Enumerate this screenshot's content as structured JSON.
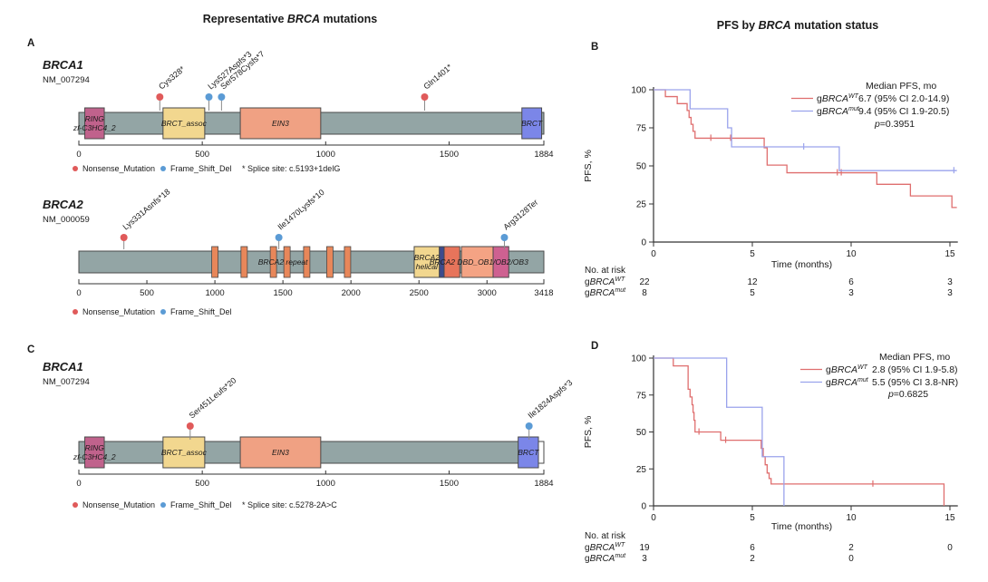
{
  "titles": {
    "left": [
      "Representative ",
      "BRCA",
      " mutations"
    ],
    "right": [
      "PFS by ",
      "BRCA",
      " mutation status"
    ]
  },
  "panels": {
    "a": "A",
    "b": "B",
    "c": "C",
    "d": "D"
  },
  "colors": {
    "nonsense": "#e05a5a",
    "frameshift": "#5b9bd5",
    "km_wt": "#df6e6e",
    "km_mut": "#9aa3ec",
    "protein_bar": "#93a5a5",
    "domain_ring": "#c0628c",
    "domain_brct_assoc": "#f2d78f",
    "domain_ein3": "#f0a183",
    "domain_brct": "#7b86e8",
    "repeat_orange": "#e8875a",
    "helical_yellow": "#f2d78f",
    "navy_strip": "#3c4b8e",
    "dbd_red": "#e7745b",
    "dbd_salmon": "#f4a384",
    "dbd_pink": "#ce6191"
  },
  "chart_data": [
    {
      "id": "brca1_a",
      "type": "lollipop",
      "gene": "BRCA1",
      "transcript": "NM_007294",
      "length": 1884,
      "axis_ticks": [
        0,
        500,
        1000,
        1500,
        1884
      ],
      "domains": [
        {
          "label": "RING",
          "label2": "zf-C3HC4_2",
          "start": 24,
          "end": 103,
          "color": "#c0628c"
        },
        {
          "label": "BRCT_assoc",
          "start": 341,
          "end": 510,
          "color": "#f2d78f"
        },
        {
          "label": "EIN3",
          "start": 654,
          "end": 980,
          "color": "#f0a183"
        },
        {
          "label": "BRCT",
          "start": 1795,
          "end": 1875,
          "color": "#7b86e8"
        }
      ],
      "mutations": [
        {
          "label": "Cys328*",
          "pos": 328,
          "type": "nonsense"
        },
        {
          "label": "Lys527Aspfs*3",
          "pos": 527,
          "type": "frameshift"
        },
        {
          "label": "Ser578Cysfs*7",
          "pos": 578,
          "type": "frameshift"
        },
        {
          "label": "Gln1401*",
          "pos": 1401,
          "type": "nonsense"
        }
      ],
      "legend": [
        {
          "label": "Nonsense_Mutation",
          "color": "#e05a5a"
        },
        {
          "label": "Frame_Shift_Del",
          "color": "#5b9bd5"
        }
      ],
      "note": "* Splice site: c.5193+1delG"
    },
    {
      "id": "brca2",
      "type": "lollipop",
      "gene": "BRCA2",
      "transcript": "NM_000059",
      "length": 3418,
      "axis_ticks": [
        0,
        500,
        1000,
        1500,
        2000,
        2500,
        3000,
        3418
      ],
      "repeats": [
        1000,
        1215,
        1430,
        1530,
        1675,
        1845,
        1975
      ],
      "repeat_color": "#e8875a",
      "bar_label": {
        "text": "BRCA2 repeat",
        "pos": 1500
      },
      "dbd_label": {
        "text": "BRCA2 DBD_OB1/OB2/OB3",
        "pos": 2940
      },
      "domains": [
        {
          "label": "BRCA2",
          "label2": "helical",
          "start": 2465,
          "end": 2650,
          "color": "#f2d78f"
        },
        {
          "start": 2650,
          "end": 2685,
          "color": "#3c4b8e"
        },
        {
          "start": 2685,
          "end": 2800,
          "color": "#e7745b"
        },
        {
          "start": 2812,
          "end": 3045,
          "color": "#f4a384"
        },
        {
          "start": 3045,
          "end": 3160,
          "color": "#ce6191"
        }
      ],
      "mutations": [
        {
          "label": "Lys331Asnfs*18",
          "pos": 331,
          "type": "nonsense"
        },
        {
          "label": "Ile1470Lysfs*10",
          "pos": 1470,
          "type": "frameshift"
        },
        {
          "label": "Arg3128Ter",
          "pos": 3128,
          "type": "frameshift"
        }
      ],
      "legend": [
        {
          "label": "Nonsense_Mutation",
          "color": "#e05a5a"
        },
        {
          "label": "Frame_Shift_Del",
          "color": "#5b9bd5"
        }
      ],
      "note": null
    },
    {
      "id": "brca1_c",
      "type": "lollipop",
      "gene": "BRCA1",
      "transcript": "NM_007294",
      "length": 1884,
      "axis_ticks": [
        0,
        500,
        1000,
        1500,
        1884
      ],
      "end_cap": {
        "start": 1862,
        "end": 1884
      },
      "domains": [
        {
          "label": "RING",
          "label2": "zf-C3HC4_2",
          "start": 24,
          "end": 103,
          "color": "#c0628c"
        },
        {
          "label": "BRCT_assoc",
          "start": 341,
          "end": 510,
          "color": "#f2d78f"
        },
        {
          "label": "EIN3",
          "start": 654,
          "end": 980,
          "color": "#f0a183"
        },
        {
          "label": "BRCT",
          "start": 1780,
          "end": 1862,
          "color": "#7b86e8"
        }
      ],
      "mutations": [
        {
          "label": "Ser451Leufs*20",
          "pos": 451,
          "type": "nonsense"
        },
        {
          "label": "Ile1824Aspfs*3",
          "pos": 1824,
          "type": "frameshift"
        }
      ],
      "legend": [
        {
          "label": "Nonsense_Mutation",
          "color": "#e05a5a"
        },
        {
          "label": "Frame_Shift_Del",
          "color": "#5b9bd5"
        }
      ],
      "note": "* Splice site: c.5278-2A>C"
    },
    {
      "id": "km_b",
      "type": "km",
      "xlabel": "Time (months)",
      "ylabel": "PFS, %",
      "xticks": [
        0,
        5,
        10,
        15
      ],
      "yticks": [
        0,
        25,
        50,
        75,
        100
      ],
      "xlim": [
        0,
        15.4
      ],
      "ylim": [
        0,
        100
      ],
      "legend_header": "Median PFS, mo",
      "p_value": "p=0.3951",
      "series": [
        {
          "name": {
            "prefix": "g",
            "gene": "BRCA",
            "sup": "WT"
          },
          "color": "#df6e6e",
          "median": "6.7 (95% CI 2.0-14.9)",
          "steps": [
            [
              0.6,
              95.5
            ],
            [
              1.2,
              90.9
            ],
            [
              1.7,
              86.4
            ],
            [
              1.8,
              81.8
            ],
            [
              1.9,
              77.3
            ],
            [
              2.0,
              72.7
            ],
            [
              2.1,
              68.2
            ],
            [
              5.6,
              61.9
            ],
            [
              5.75,
              50.5
            ],
            [
              6.75,
              45.5
            ],
            [
              11.3,
              37.9
            ],
            [
              13.0,
              30.3
            ],
            [
              15.1,
              22.7
            ]
          ],
          "end": 15.35,
          "censors": [
            [
              2.9,
              68.2
            ],
            [
              3.9,
              68.2
            ],
            [
              9.3,
              45.5
            ],
            [
              9.5,
              45.5
            ]
          ]
        },
        {
          "name": {
            "prefix": "g",
            "gene": "BRCA",
            "sup": "mut"
          },
          "color": "#9aa3ec",
          "median": "9.4 (95% CI 1.9-20.5)",
          "steps": [
            [
              1.85,
              87.5
            ],
            [
              3.75,
              75
            ],
            [
              3.95,
              62.5
            ],
            [
              9.4,
              46.9
            ]
          ],
          "end": 15.35,
          "censors": [
            [
              7.6,
              62.5
            ],
            [
              15.2,
              46.9
            ]
          ]
        }
      ],
      "risk_table": {
        "header": "No. at risk",
        "rows": [
          {
            "prefix": "g",
            "gene": "BRCA",
            "sup": "WT",
            "counts": [
              "22",
              "12",
              "6",
              "3"
            ]
          },
          {
            "prefix": "g",
            "gene": "BRCA",
            "sup": "mut",
            "counts": [
              "8",
              "5",
              "3",
              "3"
            ]
          }
        ]
      }
    },
    {
      "id": "km_d",
      "type": "km",
      "xlabel": "Time (months)",
      "ylabel": "PFS, %",
      "xticks": [
        0,
        5,
        10,
        15
      ],
      "yticks": [
        0,
        25,
        50,
        75,
        100
      ],
      "xlim": [
        0,
        15.4
      ],
      "ylim": [
        0,
        100
      ],
      "legend_header": "Median PFS, mo",
      "p_value": "p=0.6825",
      "series": [
        {
          "name": {
            "prefix": "g",
            "gene": "BRCA",
            "sup": "WT"
          },
          "color": "#df6e6e",
          "median": "2.8 (95% CI 1.9-5.8)",
          "steps": [
            [
              1.0,
              94.7
            ],
            [
              1.75,
              78.9
            ],
            [
              1.85,
              73.7
            ],
            [
              1.95,
              68.4
            ],
            [
              2.0,
              63.2
            ],
            [
              2.05,
              57.9
            ],
            [
              2.1,
              50
            ],
            [
              3.4,
              44.4
            ],
            [
              5.45,
              38.9
            ],
            [
              5.55,
              33.3
            ],
            [
              5.65,
              27.8
            ],
            [
              5.75,
              22.2
            ],
            [
              5.85,
              18.5
            ],
            [
              5.95,
              14.8
            ],
            [
              14.7,
              0
            ]
          ],
          "end": 14.7,
          "censors": [
            [
              2.3,
              50
            ],
            [
              3.65,
              44.4
            ],
            [
              11.1,
              14.8
            ]
          ]
        },
        {
          "name": {
            "prefix": "g",
            "gene": "BRCA",
            "sup": "mut"
          },
          "color": "#9aa3ec",
          "median": "5.5 (95% CI 3.8-NR)",
          "steps": [
            [
              3.7,
              66.7
            ],
            [
              5.5,
              33.3
            ],
            [
              6.6,
              0
            ]
          ],
          "end": 6.6,
          "censors": []
        }
      ],
      "risk_table": {
        "header": "No. at risk",
        "rows": [
          {
            "prefix": "g",
            "gene": "BRCA",
            "sup": "WT",
            "counts": [
              "19",
              "6",
              "2",
              "0"
            ]
          },
          {
            "prefix": "g",
            "gene": "BRCA",
            "sup": "mut",
            "counts": [
              "3",
              "2",
              "0",
              ""
            ]
          }
        ]
      }
    }
  ]
}
